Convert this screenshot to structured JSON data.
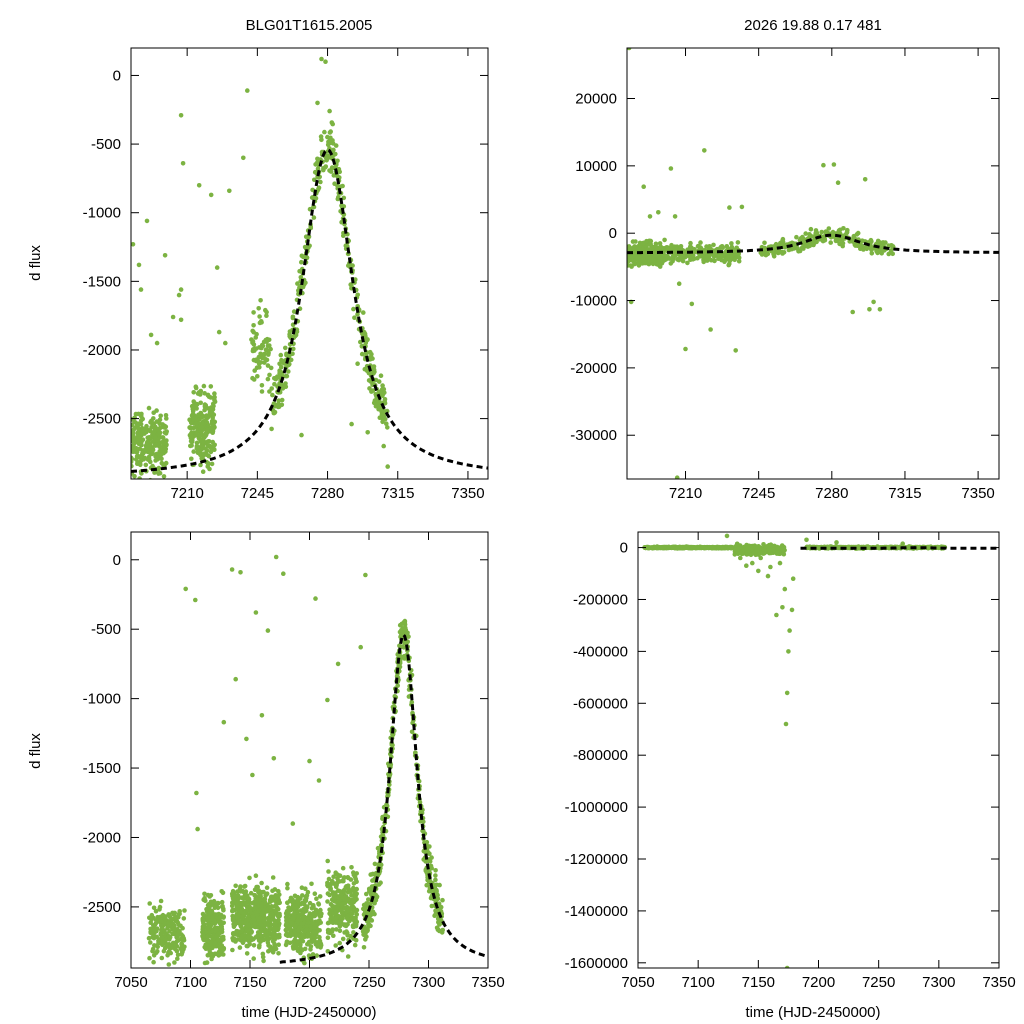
{
  "chart_data": [
    {
      "type": "scatter",
      "title": "BLG01T1615.2005",
      "xlabel": "",
      "ylabel": "d flux",
      "xlim": [
        7182,
        7360
      ],
      "ylim": [
        -2940,
        200
      ],
      "xticks": [
        7210,
        7245,
        7280,
        7315,
        7350
      ],
      "yticks": [
        0,
        -500,
        -1000,
        -1500,
        -2000,
        -2500
      ],
      "xtick_labels": [
        "7210",
        "7245",
        "7280",
        "7315",
        "7350"
      ],
      "ytick_labels": [
        "0",
        "-500",
        "-1000",
        "-1500",
        "-2000",
        "-2500"
      ],
      "point_color": "#7cb342",
      "model_color": "#000000",
      "series": [
        {
          "name": "data",
          "style": "points",
          "groups": [
            {
              "x": [
                7182,
                7200
              ],
              "y_center": -2680,
              "y_spread": 320,
              "count": 260
            },
            {
              "x": [
                7211,
                7224
              ],
              "y_center": -2560,
              "y_spread": 380,
              "count": 220
            },
            {
              "x": [
                7242,
                7252
              ],
              "y_center": -2000,
              "y_spread": 420,
              "count": 70
            },
            {
              "follow_model": true,
              "x": [
                7252,
                7310
              ],
              "y_spread": 280,
              "count": 420
            }
          ],
          "outliers": [
            [
              7183,
              -1230
            ],
            [
              7186,
              -1380
            ],
            [
              7187,
              -1560
            ],
            [
              7190,
              -1060
            ],
            [
              7192,
              -1890
            ],
            [
              7195,
              -1950
            ],
            [
              7199,
              -1310
            ],
            [
              7203,
              -1760
            ],
            [
              7206,
              -1600
            ],
            [
              7207,
              -1560
            ],
            [
              7207,
              -1780
            ],
            [
              7207,
              -290
            ],
            [
              7208,
              -640
            ],
            [
              7216,
              -800
            ],
            [
              7222,
              -870
            ],
            [
              7225,
              -1400
            ],
            [
              7226,
              -1870
            ],
            [
              7229,
              -1950
            ],
            [
              7231,
              -840
            ],
            [
              7238,
              -600
            ],
            [
              7240,
              -110
            ],
            [
              7267,
              -2620
            ],
            [
              7292,
              -2540
            ],
            [
              7295,
              -2100
            ],
            [
              7300,
              -2600
            ],
            [
              7303,
              -2250
            ],
            [
              7305,
              -2400
            ],
            [
              7308,
              -2700
            ],
            [
              7310,
              -2850
            ],
            [
              7277,
              120
            ],
            [
              7279,
              100
            ],
            [
              7275,
              -200
            ],
            [
              7281,
              -260
            ]
          ]
        },
        {
          "name": "model",
          "style": "dashed",
          "model": {
            "t0": 7280,
            "baseline": -2935,
            "peak": -540,
            "width": 11,
            "x": [
              7182,
              7360
            ]
          }
        }
      ]
    },
    {
      "type": "scatter",
      "title": "2026  19.88  0.17  481",
      "xlabel": "",
      "ylabel": "",
      "xlim": [
        7182,
        7360
      ],
      "ylim": [
        -36500,
        27500
      ],
      "xticks": [
        7210,
        7245,
        7280,
        7315,
        7350
      ],
      "yticks": [
        20000,
        10000,
        0,
        -10000,
        -20000,
        -30000
      ],
      "xtick_labels": [
        "7210",
        "7245",
        "7280",
        "7315",
        "7350"
      ],
      "ytick_labels": [
        "20000",
        "10000",
        "0",
        "-10000",
        "-20000",
        "-30000"
      ],
      "point_color": "#7cb342",
      "model_color": "#000000",
      "series": [
        {
          "name": "data",
          "style": "points",
          "groups": [
            {
              "x": [
                7182,
                7200
              ],
              "y_center": -3100,
              "y_spread": 2600,
              "count": 260
            },
            {
              "x": [
                7200,
                7236
              ],
              "y_center": -3000,
              "y_spread": 2000,
              "count": 260
            },
            {
              "follow_model": true,
              "x": [
                7246,
                7310
              ],
              "y_spread": 1600,
              "count": 260
            }
          ],
          "outliers": [
            [
              7183,
              27500
            ],
            [
              7184,
              -10200
            ],
            [
              7190,
              6900
            ],
            [
              7193,
              2500
            ],
            [
              7197,
              3100
            ],
            [
              7200,
              -1000
            ],
            [
              7203,
              9600
            ],
            [
              7205,
              2500
            ],
            [
              7207,
              -7500
            ],
            [
              7210,
              -17200
            ],
            [
              7213,
              -10500
            ],
            [
              7219,
              12300
            ],
            [
              7222,
              -14300
            ],
            [
              7231,
              3800
            ],
            [
              7234,
              -17400
            ],
            [
              7237,
              3900
            ],
            [
              7270,
              600
            ],
            [
              7276,
              10100
            ],
            [
              7281,
              10200
            ],
            [
              7283,
              7500
            ],
            [
              7290,
              -11700
            ],
            [
              7296,
              8000
            ],
            [
              7298,
              -11300
            ],
            [
              7300,
              -10200
            ],
            [
              7303,
              -11300
            ],
            [
              7206,
              -36300
            ]
          ]
        },
        {
          "name": "model",
          "style": "dashed",
          "model": {
            "t0": 7280,
            "baseline": -2950,
            "peak": -300,
            "width": 12,
            "x": [
              7182,
              7360
            ]
          }
        }
      ]
    },
    {
      "type": "scatter",
      "title": "",
      "xlabel": "time (HJD-2450000)",
      "ylabel": "d flux",
      "xlim": [
        7050,
        7350
      ],
      "ylim": [
        -2940,
        200
      ],
      "xticks": [
        7050,
        7100,
        7150,
        7200,
        7250,
        7300,
        7350
      ],
      "yticks": [
        0,
        -500,
        -1000,
        -1500,
        -2000,
        -2500
      ],
      "xtick_labels": [
        "7050",
        "7100",
        "7150",
        "7200",
        "7250",
        "7300",
        "7350"
      ],
      "ytick_labels": [
        "0",
        "-500",
        "-1000",
        "-1500",
        "-2000",
        "-2500"
      ],
      "point_color": "#7cb342",
      "model_color": "#000000",
      "series": [
        {
          "name": "data",
          "style": "points",
          "groups": [
            {
              "x": [
                7065,
                7095
              ],
              "y_center": -2700,
              "y_spread": 280,
              "count": 180
            },
            {
              "x": [
                7110,
                7128
              ],
              "y_center": -2650,
              "y_spread": 320,
              "count": 220
            },
            {
              "x": [
                7135,
                7175
              ],
              "y_center": -2580,
              "y_spread": 360,
              "count": 520
            },
            {
              "x": [
                7180,
                7210
              ],
              "y_center": -2620,
              "y_spread": 330,
              "count": 320
            },
            {
              "x": [
                7215,
                7240
              ],
              "y_center": -2500,
              "y_spread": 380,
              "count": 240
            },
            {
              "follow_model": true,
              "x": [
                7245,
                7312
              ],
              "y_spread": 260,
              "count": 480
            }
          ],
          "outliers": [
            [
              7096,
              -210
            ],
            [
              7104,
              -290
            ],
            [
              7105,
              -1680
            ],
            [
              7106,
              -1940
            ],
            [
              7128,
              -1170
            ],
            [
              7135,
              -70
            ],
            [
              7138,
              -860
            ],
            [
              7142,
              -90
            ],
            [
              7147,
              -1290
            ],
            [
              7152,
              -1550
            ],
            [
              7155,
              -380
            ],
            [
              7160,
              -1120
            ],
            [
              7165,
              -510
            ],
            [
              7170,
              -1430
            ],
            [
              7172,
              20
            ],
            [
              7178,
              -100
            ],
            [
              7186,
              -1900
            ],
            [
              7200,
              -1450
            ],
            [
              7205,
              -280
            ],
            [
              7208,
              -1590
            ],
            [
              7215,
              -1010
            ],
            [
              7224,
              -750
            ],
            [
              7243,
              -630
            ],
            [
              7247,
              -110
            ]
          ]
        },
        {
          "name": "model",
          "style": "dashed",
          "model": {
            "t0": 7279,
            "baseline": -2935,
            "peak": -540,
            "width": 10,
            "x": [
              7175,
              7350
            ]
          }
        }
      ]
    },
    {
      "type": "scatter",
      "title": "",
      "xlabel": "time (HJD-2450000)",
      "ylabel": "",
      "xlim": [
        7050,
        7350
      ],
      "ylim": [
        -1620000,
        60000
      ],
      "xticks": [
        7050,
        7100,
        7150,
        7200,
        7250,
        7300,
        7350
      ],
      "yticks": [
        0,
        -200000,
        -400000,
        -600000,
        -800000,
        -1000000,
        -1200000,
        -1400000,
        -1600000
      ],
      "xtick_labels": [
        "7050",
        "7100",
        "7150",
        "7200",
        "7250",
        "7300",
        "7350"
      ],
      "ytick_labels": [
        "0",
        "-200000",
        "-400000",
        "-600000",
        "-800000",
        "-1000000",
        "-1200000",
        "-1400000",
        "-1600000"
      ],
      "point_color": "#7cb342",
      "model_color": "#000000",
      "series": [
        {
          "name": "data",
          "style": "points",
          "groups": [
            {
              "x": [
                7055,
                7128
              ],
              "y_center": 0,
              "y_spread": 4000,
              "count": 360
            },
            {
              "x": [
                7130,
                7172
              ],
              "y_center": -8000,
              "y_spread": 25000,
              "count": 320
            },
            {
              "x": [
                7190,
                7305
              ],
              "y_center": 0,
              "y_spread": 5000,
              "count": 300
            }
          ],
          "outliers": [
            [
              7124,
              45000
            ],
            [
              7135,
              -40000
            ],
            [
              7140,
              -70000
            ],
            [
              7145,
              -60000
            ],
            [
              7150,
              -90000
            ],
            [
              7152,
              -40000
            ],
            [
              7158,
              -110000
            ],
            [
              7160,
              -75000
            ],
            [
              7165,
              -260000
            ],
            [
              7168,
              -60000
            ],
            [
              7170,
              -230000
            ],
            [
              7172,
              -160000
            ],
            [
              7173,
              -680000
            ],
            [
              7174,
              -560000
            ],
            [
              7174,
              -1620000
            ],
            [
              7175,
              -400000
            ],
            [
              7176,
              -320000
            ],
            [
              7178,
              -240000
            ],
            [
              7179,
              -120000
            ],
            [
              7190,
              30000
            ],
            [
              7215,
              20000
            ],
            [
              7270,
              15000
            ]
          ]
        },
        {
          "name": "model",
          "style": "dashed",
          "model": {
            "t0": 7280,
            "baseline": -2950,
            "peak": -300,
            "width": 12,
            "x": [
              7185,
              7350
            ]
          }
        }
      ]
    }
  ]
}
